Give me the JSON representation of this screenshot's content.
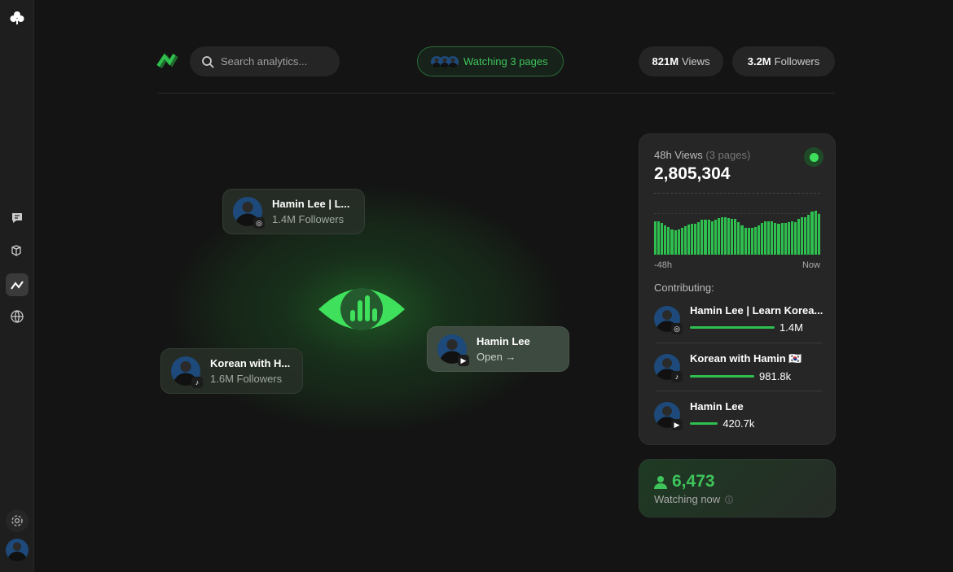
{
  "sidebar": {
    "items": [
      {
        "name": "logo",
        "icon": "clover-icon"
      },
      {
        "name": "messages",
        "icon": "chat-icon"
      },
      {
        "name": "packages",
        "icon": "cubes-icon"
      },
      {
        "name": "analytics",
        "icon": "trend-icon",
        "active": true
      },
      {
        "name": "globe",
        "icon": "globe-icon"
      },
      {
        "name": "settings",
        "icon": "gear-icon"
      }
    ]
  },
  "header": {
    "search_placeholder": "Search analytics...",
    "watching": "Watching 3 pages",
    "views_value": "821M",
    "views_label": "Views",
    "followers_value": "3.2M",
    "followers_label": "Followers"
  },
  "floating": [
    {
      "name": "Hamin Lee | L...",
      "sub": "1.4M Followers",
      "platform": "instagram"
    },
    {
      "name": "Korean with H...",
      "sub": "1.6M Followers",
      "platform": "tiktok"
    },
    {
      "name": "Hamin Lee",
      "sub": "Open →",
      "platform": "youtube"
    }
  ],
  "stats": {
    "title": "48h Views",
    "pages": "(3 pages)",
    "total": "2,805,304",
    "x_start": "-48h",
    "x_end": "Now",
    "bars": [
      65,
      65,
      62,
      57,
      54,
      50,
      48,
      49,
      53,
      56,
      59,
      60,
      60,
      63,
      68,
      69,
      69,
      66,
      68,
      71,
      74,
      73,
      72,
      70,
      70,
      64,
      57,
      53,
      53,
      53,
      54,
      58,
      62,
      65,
      66,
      65,
      62,
      60,
      62,
      62,
      63,
      66,
      64,
      70,
      73,
      74,
      78,
      84,
      86,
      80
    ],
    "contributing_label": "Contributing:",
    "contributors": [
      {
        "name": "Hamin Lee | Learn Korea...",
        "value": "1.4M",
        "share": 1.0,
        "platform": "instagram"
      },
      {
        "name": "Korean with Hamin 🇰🇷",
        "value": "981.8k",
        "share": 0.76,
        "platform": "tiktok"
      },
      {
        "name": "Hamin Lee",
        "value": "420.7k",
        "share": 0.33,
        "platform": "youtube"
      }
    ]
  },
  "live": {
    "count": "6,473",
    "label": "Watching now"
  },
  "colors": {
    "accent": "#2fbf4f",
    "bright": "#3ee05c",
    "bg": "#141414"
  }
}
